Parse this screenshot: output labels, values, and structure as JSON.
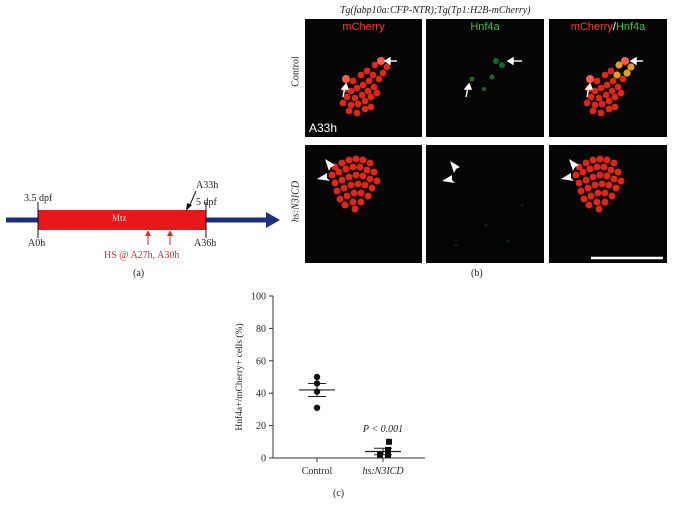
{
  "panel_a": {
    "start_label": "3.5 dpf",
    "end_label": "5 dpf",
    "a33h_label": "A33h",
    "a0h_label": "A0h",
    "a36h_label": "A36h",
    "bar_label": "Mtz",
    "hs_label": "HS @ A27h, A30h",
    "caption": "(a)"
  },
  "panel_b": {
    "title": "Tg(fabp10a:CFP-NTR);Tg(Tp1:H2B-mCherry)",
    "columns": [
      "mCherry",
      "Hnf4a",
      "mCherry/Hnf4a"
    ],
    "column_merge_parts": [
      "mCherry",
      "/",
      "Hnf4a"
    ],
    "rows": [
      "Control",
      "hs:N3ICD"
    ],
    "timepoint": "A33h",
    "caption": "(b)",
    "colors": {
      "mcherry": "#ff2a1a",
      "hnf4a": "#2fbf2f",
      "background": "#050505"
    }
  },
  "panel_c": {
    "ylabel": "Hnf4a+/mCherry+ cells (%)",
    "pvalue": "P < 0.001",
    "caption": "(c)"
  },
  "chart_data": {
    "type": "scatter",
    "categories": [
      "Control",
      "hs:N3ICD"
    ],
    "ylim": [
      0,
      100
    ],
    "yticks": [
      0,
      20,
      40,
      60,
      80,
      100
    ],
    "ylabel": "Hnf4a+/mCherry+ cells (%)",
    "series": [
      {
        "category": "Control",
        "marker": "circle",
        "values": [
          50,
          46,
          41,
          31
        ],
        "mean": 42,
        "sem": 4
      },
      {
        "category": "hs:N3ICD",
        "marker": "square",
        "values": [
          10,
          5,
          2,
          2
        ],
        "mean": 4,
        "sem": 2
      }
    ],
    "annotation": "P < 0.001"
  }
}
